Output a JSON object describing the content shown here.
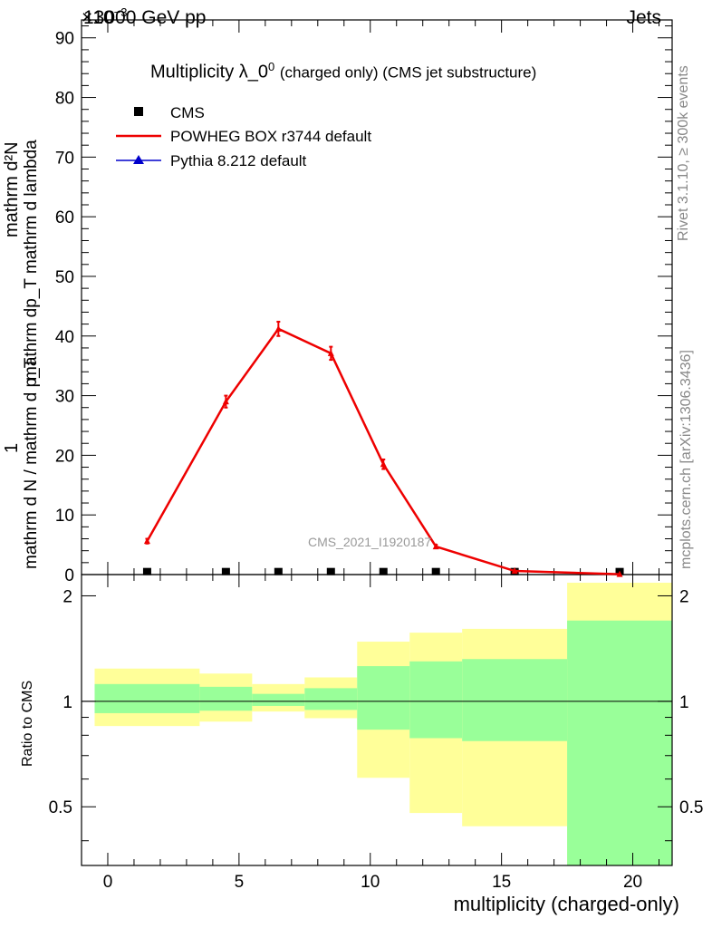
{
  "header": {
    "left": "13000 GeV pp",
    "right": "Jets",
    "exponent": "×10"
  },
  "side_text": {
    "rivet": "Rivet 3.1.10, ≥ 300k events",
    "mcplots": "mcplots.cern.ch [arXiv:1306.3436]"
  },
  "watermark": "CMS_2021_I1920187",
  "chart_data": [
    {
      "type": "line",
      "title": "Multiplicity λ_0⁰",
      "title_main": "Multiplicity λ_0",
      "title_sup": "0",
      "title_suffix": "(charged only) (CMS jet substructure)",
      "ylabel_top": "mathrm d²N",
      "ylabel_frac_num": "mathrm dp_T mathrm d lambda",
      "ylabel_left_num": "1",
      "ylabel_left_den": "mathrm d N / mathrm d p_T",
      "xlabel": "",
      "xlim": [
        -1,
        21.5
      ],
      "ylim": [
        0,
        93
      ],
      "ytick_labels": [
        "0",
        "10",
        "20",
        "30",
        "40",
        "50",
        "60",
        "70",
        "80",
        "90"
      ],
      "yticks": [
        0,
        10,
        20,
        30,
        40,
        50,
        60,
        70,
        80,
        90
      ],
      "legend": {
        "position": "top-left",
        "entries": [
          {
            "label": "CMS",
            "marker": "square",
            "color": "#000000"
          },
          {
            "label": "POWHEG BOX r3744 default",
            "marker": "line",
            "color": "#ee0000"
          },
          {
            "label": "Pythia 8.212 default",
            "marker": "triangle",
            "color": "#0000cc"
          }
        ]
      },
      "series": [
        {
          "name": "CMS",
          "style": "markers",
          "color": "#000000",
          "x": [
            1.5,
            4.5,
            6.5,
            8.5,
            10.5,
            12.5,
            15.5,
            19.5
          ],
          "y": [
            0.05,
            0.05,
            0.05,
            0.05,
            0.05,
            0.05,
            0.05,
            0.05
          ]
        },
        {
          "name": "POWHEG BOX r3744 default",
          "style": "line",
          "color": "#ee0000",
          "x": [
            1.5,
            4.5,
            6.5,
            8.5,
            10.5,
            12.5,
            15.5,
            19.5
          ],
          "y": [
            5.6,
            29.0,
            41.2,
            37.1,
            18.5,
            4.7,
            0.6,
            0.05
          ],
          "err": [
            0.4,
            1.0,
            1.2,
            1.1,
            0.8,
            0.3,
            0.1,
            0.02
          ]
        }
      ]
    },
    {
      "type": "area",
      "ylabel": "Ratio to CMS",
      "xlabel": "multiplicity (charged-only)",
      "xlim": [
        -1,
        21.5
      ],
      "ylim": [
        0.34,
        2.3
      ],
      "yscale": "log",
      "ytick_labels": [
        "0.5",
        "1",
        "2"
      ],
      "yticks": [
        0.5,
        1,
        2
      ],
      "xtick_labels": [
        "0",
        "5",
        "10",
        "15",
        "20"
      ],
      "xticks": [
        0,
        5,
        10,
        15,
        20
      ],
      "reference_line": 1,
      "bins": [
        {
          "x0": -0.5,
          "x1": 3.5,
          "yellow": [
            0.85,
            1.24
          ],
          "green": [
            0.925,
            1.12
          ]
        },
        {
          "x0": 3.5,
          "x1": 5.5,
          "yellow": [
            0.875,
            1.2
          ],
          "green": [
            0.94,
            1.1
          ]
        },
        {
          "x0": 5.5,
          "x1": 7.5,
          "yellow": [
            0.935,
            1.12
          ],
          "green": [
            0.97,
            1.05
          ]
        },
        {
          "x0": 7.5,
          "x1": 9.5,
          "yellow": [
            0.895,
            1.17
          ],
          "green": [
            0.945,
            1.09
          ]
        },
        {
          "x0": 9.5,
          "x1": 11.5,
          "yellow": [
            0.605,
            1.48
          ],
          "green": [
            0.83,
            1.26
          ]
        },
        {
          "x0": 11.5,
          "x1": 13.5,
          "yellow": [
            0.48,
            1.57
          ],
          "green": [
            0.785,
            1.3
          ]
        },
        {
          "x0": 13.5,
          "x1": 17.5,
          "yellow": [
            0.44,
            1.61
          ],
          "green": [
            0.77,
            1.32
          ]
        },
        {
          "x0": 17.5,
          "x1": 21.5,
          "yellow": [
            0.34,
            2.18
          ],
          "green": [
            0.34,
            1.7
          ]
        }
      ],
      "colors": {
        "yellow": "#ffff99",
        "green": "#99ff99"
      }
    }
  ]
}
